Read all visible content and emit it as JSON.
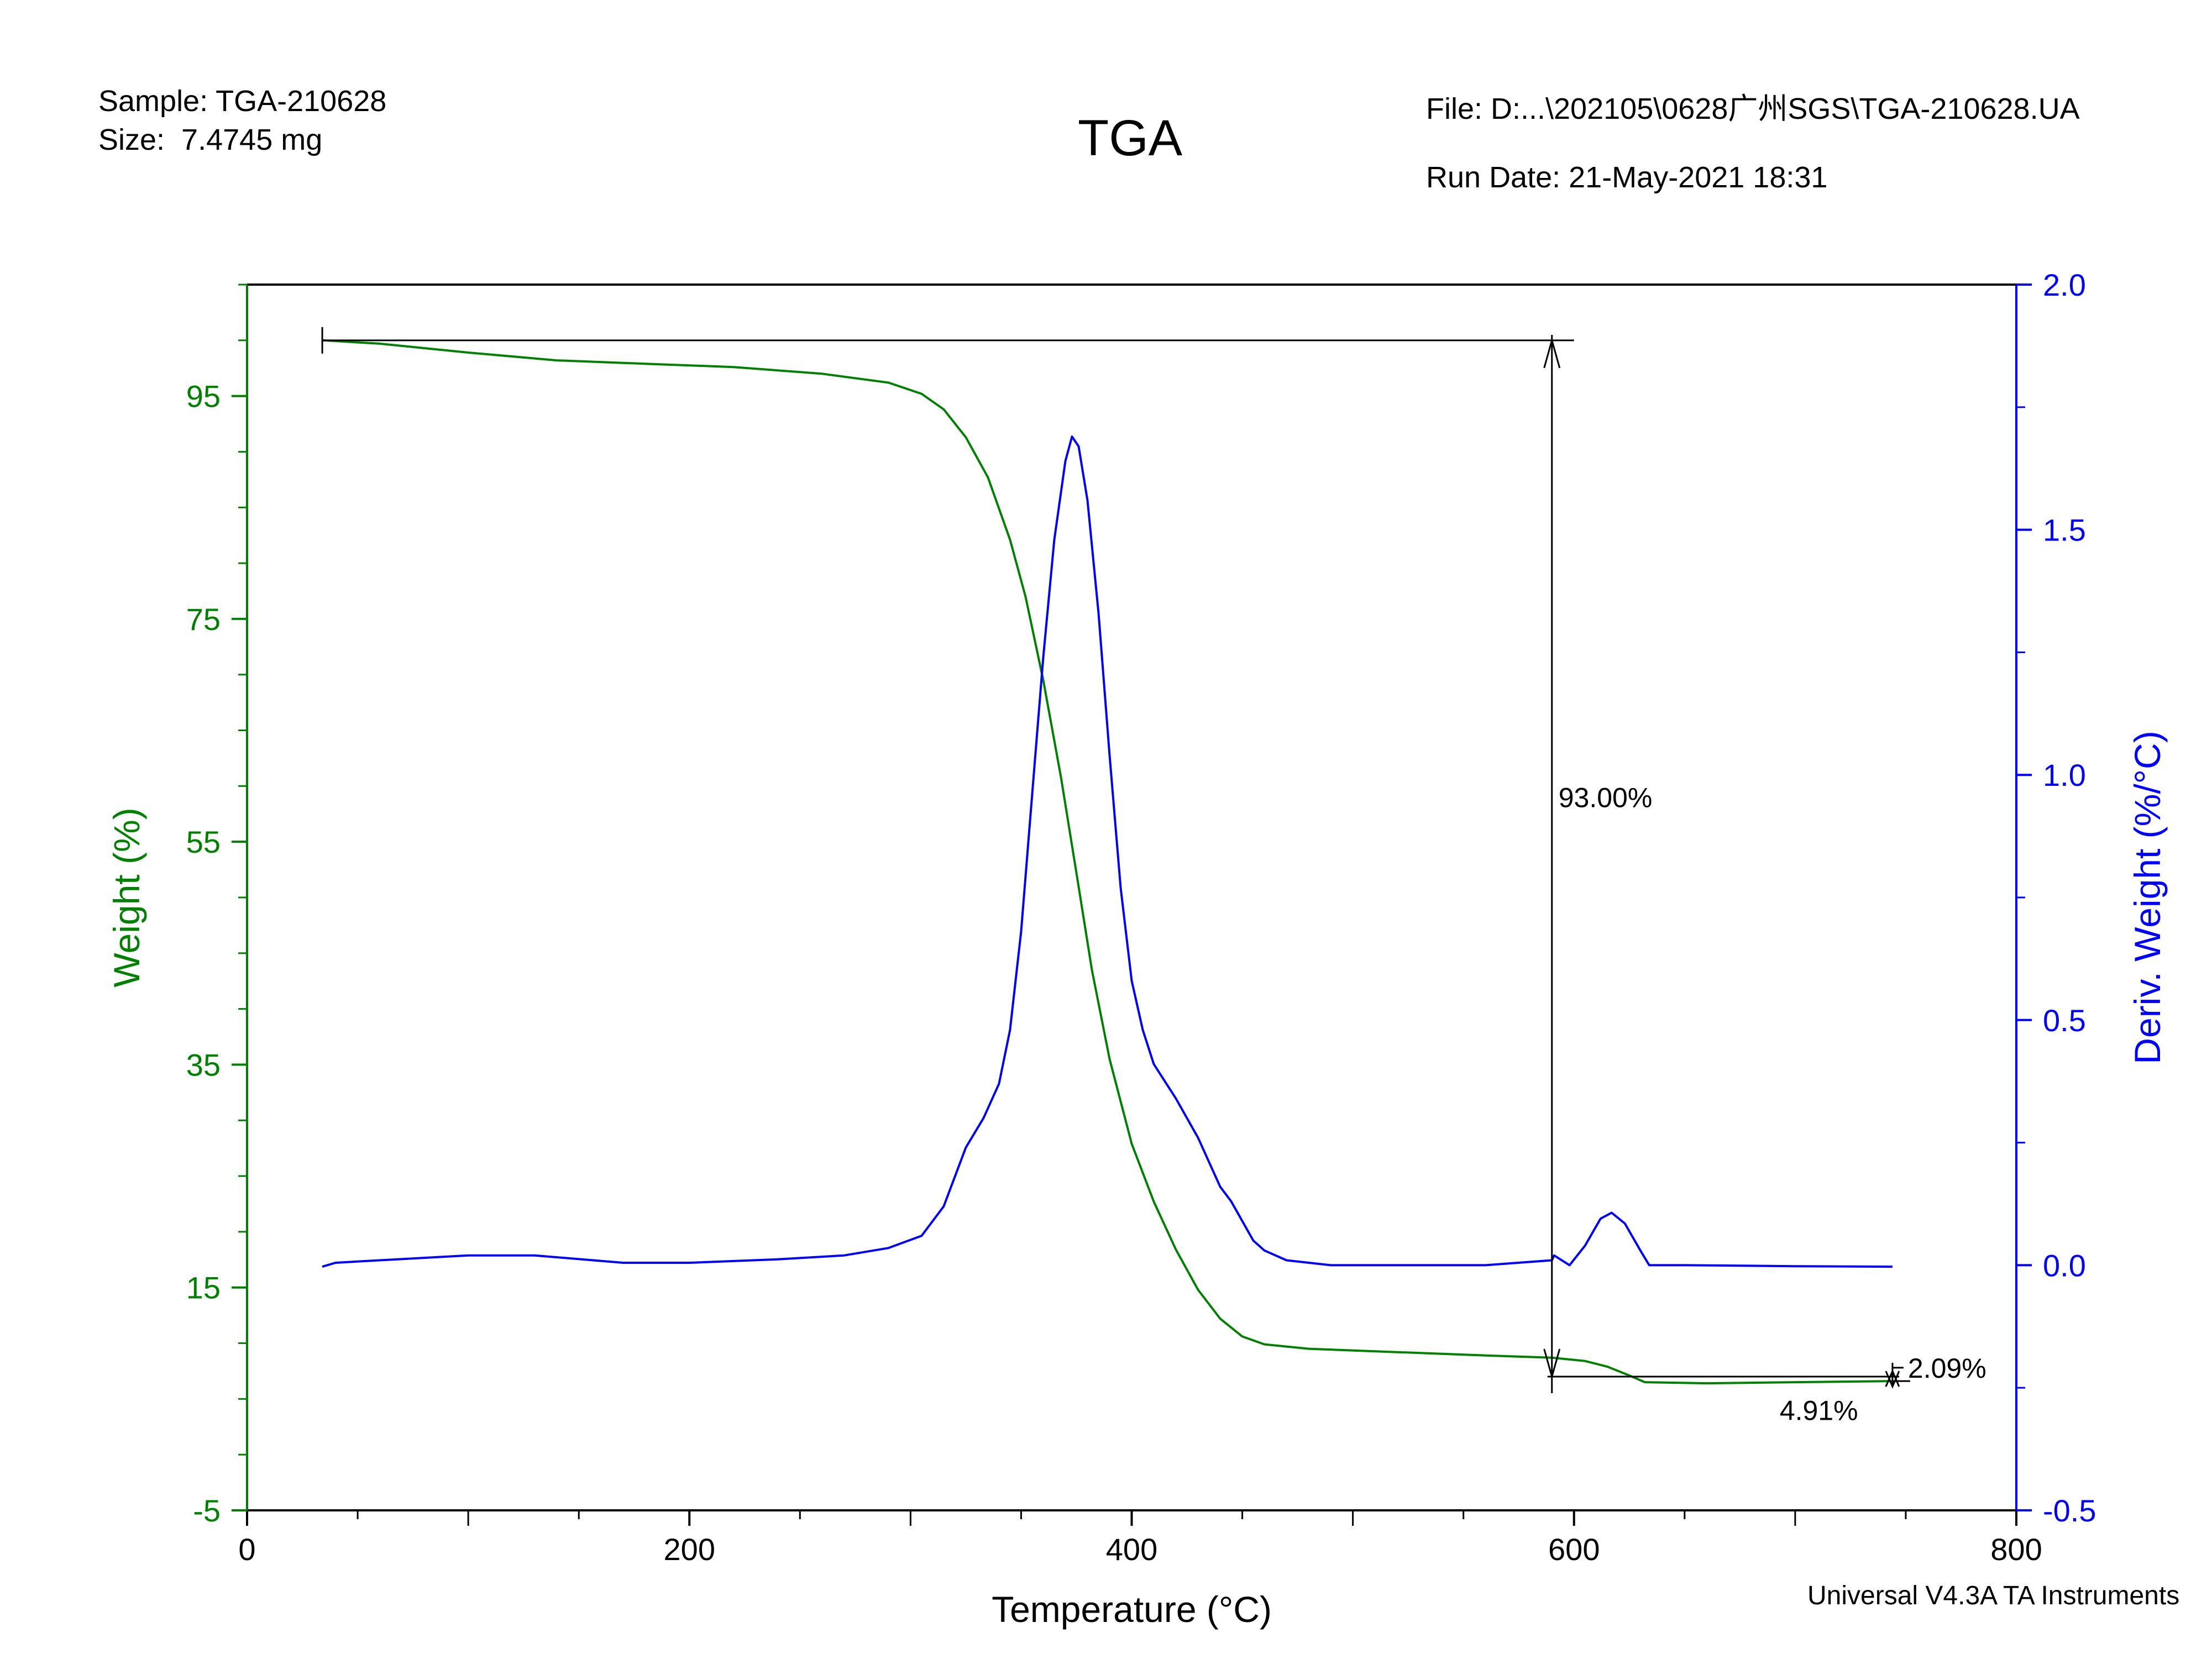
{
  "header": {
    "sample": "Sample: TGA-210628",
    "size": "Size:  7.4745 mg",
    "title": "TGA",
    "file": "File: D:...\\202105\\0628广州SGS\\TGA-210628.UA",
    "run_date": "Run Date: 21-May-2021 18:31",
    "footer": "Universal V4.3A TA Instruments"
  },
  "colors": {
    "weight": "#008000",
    "deriv": "#0000ff",
    "frame": "#000000"
  },
  "chart_data": {
    "type": "line",
    "title": "TGA",
    "xlabel": "Temperature (°C)",
    "ylabel": "Weight (%)",
    "y2label": "Deriv. Weight (%/°C)",
    "xlim": [
      0,
      800
    ],
    "ylim": [
      -5,
      105
    ],
    "y2lim": [
      -0.5,
      2.0
    ],
    "xticks": [
      0,
      200,
      400,
      600,
      800
    ],
    "yticks": [
      -5,
      15,
      35,
      55,
      75,
      95
    ],
    "y2ticks": [
      -0.5,
      0.0,
      0.5,
      1.0,
      1.5,
      2.0
    ],
    "series": [
      {
        "name": "Weight (%)",
        "axis": "left",
        "x": [
          34,
          60,
          100,
          140,
          180,
          220,
          260,
          290,
          305,
          315,
          325,
          335,
          345,
          352,
          360,
          368,
          375,
          382,
          390,
          400,
          410,
          420,
          430,
          440,
          450,
          460,
          480,
          520,
          560,
          590,
          605,
          615,
          625,
          632,
          660,
          700,
          744
        ],
        "y": [
          100.0,
          99.7,
          98.9,
          98.2,
          97.9,
          97.6,
          97.0,
          96.2,
          95.2,
          93.8,
          91.3,
          87.7,
          82.1,
          77.0,
          69.5,
          60.8,
          52.2,
          43.5,
          35.5,
          27.9,
          22.7,
          18.4,
          14.8,
          12.2,
          10.6,
          9.9,
          9.5,
          9.2,
          8.9,
          8.7,
          8.4,
          7.9,
          7.1,
          6.5,
          6.4,
          6.5,
          6.6
        ]
      },
      {
        "name": "Deriv. Weight (%/°C)",
        "axis": "right",
        "x": [
          34,
          40,
          60,
          100,
          130,
          170,
          200,
          240,
          270,
          290,
          305,
          315,
          325,
          333,
          340,
          345,
          350,
          355,
          360,
          365,
          370,
          373,
          376,
          380,
          385,
          390,
          395,
          400,
          405,
          410,
          420,
          430,
          440,
          445,
          450,
          455,
          460,
          470,
          490,
          520,
          560,
          590,
          591,
          598,
          605,
          612,
          617,
          623,
          630,
          634,
          650,
          700,
          744
        ],
        "y": [
          -0.003,
          0.005,
          0.01,
          0.02,
          0.02,
          0.005,
          0.005,
          0.012,
          0.02,
          0.035,
          0.06,
          0.12,
          0.24,
          0.3,
          0.37,
          0.48,
          0.68,
          0.96,
          1.24,
          1.48,
          1.64,
          1.69,
          1.67,
          1.56,
          1.33,
          1.04,
          0.77,
          0.58,
          0.48,
          0.41,
          0.34,
          0.26,
          0.16,
          0.13,
          0.09,
          0.05,
          0.03,
          0.01,
          0.0,
          0.0,
          0.0,
          0.01,
          0.02,
          0.0,
          0.04,
          0.095,
          0.107,
          0.085,
          0.03,
          0.0,
          0.0,
          -0.002,
          -0.003
        ]
      }
    ],
    "annotations": [
      {
        "label": "93.00%",
        "x_value": 590,
        "from_weight": 100.0,
        "to_weight": 7.0
      },
      {
        "label": "2.09%",
        "x_value": 744,
        "from_weight": 8.7,
        "to_weight": 6.6
      },
      {
        "label": "4.91%"
      }
    ]
  }
}
